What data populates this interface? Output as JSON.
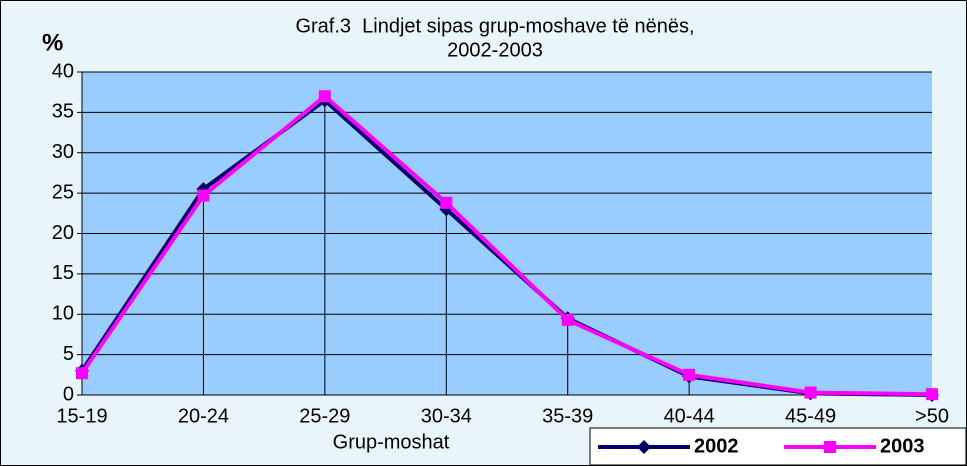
{
  "chart_data": {
    "type": "line",
    "title": [
      "Graf.3  Lindjet sipas grup-moshave të nënës,",
      "2002-2003"
    ],
    "ylabel": "%",
    "xlabel": "Grup-moshat",
    "categories": [
      "15-19",
      "20-24",
      "25-29",
      "30-34",
      "35-39",
      "40-44",
      "45-49",
      ">50"
    ],
    "series": [
      {
        "name": "2002",
        "color": "#000066",
        "marker": "diamond",
        "values": [
          3,
          25.5,
          36.5,
          23,
          9.5,
          2.3,
          0.2,
          0
        ]
      },
      {
        "name": "2003",
        "color": "#ff00ff",
        "marker": "square",
        "values": [
          2.7,
          24.7,
          37,
          23.8,
          9.3,
          2.5,
          0.3,
          0.1
        ]
      }
    ],
    "ylim": [
      0,
      40
    ],
    "yticks": [
      0,
      5,
      10,
      15,
      20,
      25,
      30,
      35,
      40
    ],
    "grid": true,
    "drop_lines": true,
    "legend": "bottom-right"
  }
}
